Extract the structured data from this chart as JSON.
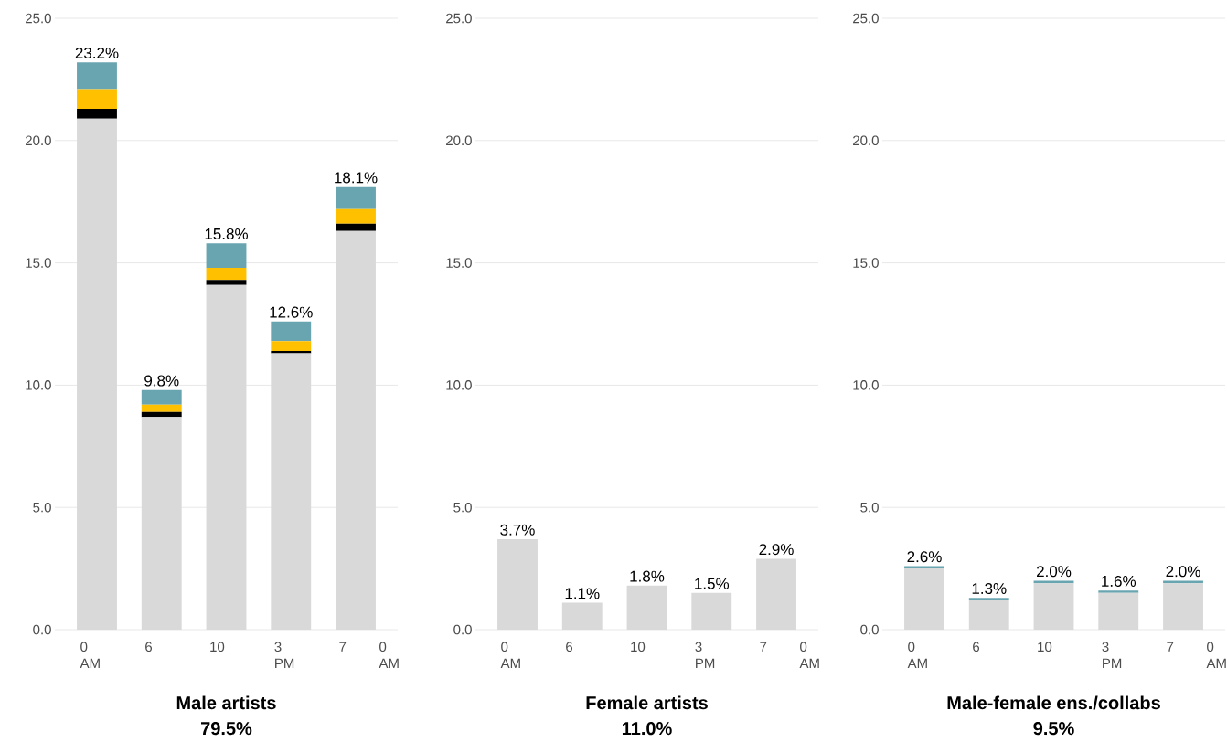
{
  "chart_data": [
    {
      "type": "bar",
      "stacked": true,
      "title": "Male artists",
      "subtitle": "79.5%",
      "categories": [
        "0 AM",
        "6",
        "10",
        "3 PM",
        "7"
      ],
      "series": [
        {
          "color": "#d9d9d9",
          "values": [
            20.9,
            8.7,
            14.1,
            11.3,
            16.3
          ]
        },
        {
          "color": "#000000",
          "values": [
            0.4,
            0.2,
            0.2,
            0.1,
            0.3
          ]
        },
        {
          "color": "#ffc000",
          "values": [
            0.8,
            0.3,
            0.5,
            0.4,
            0.6
          ]
        },
        {
          "color": "#69a5b0",
          "values": [
            1.1,
            0.6,
            1.0,
            0.8,
            0.9
          ]
        }
      ],
      "totals": [
        "23.2%",
        "9.8%",
        "15.8%",
        "12.6%",
        "18.1%"
      ],
      "annotations": [
        "0 AM"
      ],
      "ylim": [
        0,
        25
      ],
      "yticks": [
        {
          "value": 0,
          "label": "0.0"
        },
        {
          "value": 5,
          "label": "5.0"
        },
        {
          "value": 10,
          "label": "10.0"
        },
        {
          "value": 15,
          "label": "15.0"
        },
        {
          "value": 20,
          "label": "20.0"
        },
        {
          "value": 25,
          "label": "25.0"
        }
      ],
      "grid": "y"
    },
    {
      "type": "bar",
      "stacked": true,
      "title": "Female artists",
      "subtitle": "11.0%",
      "categories": [
        "0 AM",
        "6",
        "10",
        "3 PM",
        "7"
      ],
      "series": [
        {
          "color": "#d9d9d9",
          "values": [
            3.7,
            1.1,
            1.8,
            1.5,
            2.9
          ]
        }
      ],
      "totals": [
        "3.7%",
        "1.1%",
        "1.8%",
        "1.5%",
        "2.9%"
      ],
      "annotations": [
        "0 AM"
      ],
      "ylim": [
        0,
        25
      ],
      "yticks": [
        {
          "value": 0,
          "label": "0.0"
        },
        {
          "value": 5,
          "label": "5.0"
        },
        {
          "value": 10,
          "label": "10.0"
        },
        {
          "value": 15,
          "label": "15.0"
        },
        {
          "value": 20,
          "label": "20.0"
        },
        {
          "value": 25,
          "label": "25.0"
        }
      ],
      "grid": "y"
    },
    {
      "type": "bar",
      "stacked": true,
      "title": "Male-female ens./collabs",
      "subtitle": "9.5%",
      "categories": [
        "0 AM",
        "6",
        "10",
        "3 PM",
        "7"
      ],
      "series": [
        {
          "color": "#d9d9d9",
          "values": [
            2.5,
            1.2,
            1.9,
            1.5,
            1.9
          ]
        },
        {
          "color": "#69a5b0",
          "values": [
            0.1,
            0.1,
            0.1,
            0.1,
            0.1
          ]
        }
      ],
      "totals": [
        "2.6%",
        "1.3%",
        "2.0%",
        "1.6%",
        "2.0%"
      ],
      "annotations": [
        "0 AM"
      ],
      "ylim": [
        0,
        25
      ],
      "yticks": [
        {
          "value": 0,
          "label": "0.0"
        },
        {
          "value": 5,
          "label": "5.0"
        },
        {
          "value": 10,
          "label": "10.0"
        },
        {
          "value": 15,
          "label": "15.0"
        },
        {
          "value": 20,
          "label": "20.0"
        },
        {
          "value": 25,
          "label": "25.0"
        }
      ],
      "grid": "y"
    }
  ]
}
